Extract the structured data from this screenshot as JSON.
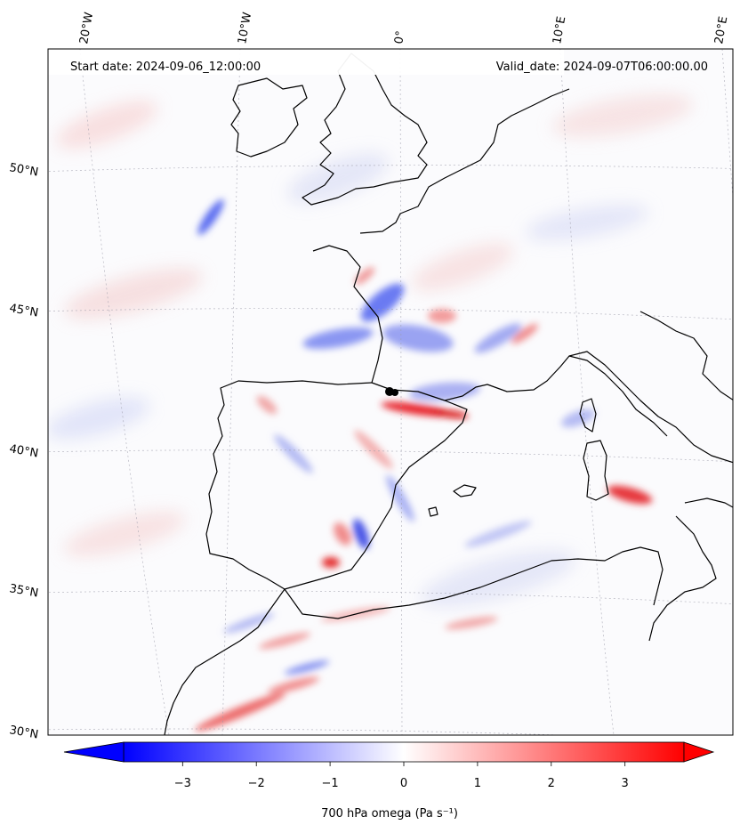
{
  "header": {
    "start_date": "Start date: 2024-09-06_12:00:00",
    "valid_date": "Valid_date: 2024-09-07T06:00:00.00"
  },
  "map": {
    "projection": "conic",
    "longitude_labels": [
      "20°W",
      "10°W",
      "0°",
      "10°E",
      "20°E"
    ],
    "latitude_labels": [
      "50°N",
      "45°N",
      "40°N",
      "35°N",
      "30°N"
    ],
    "gridlines": true,
    "field_features": [
      {
        "region": "Gulf of Lion / Pyrenees",
        "sign": "positive",
        "value": 3.2
      },
      {
        "region": "Bay of Biscay",
        "sign": "negative",
        "value": -2.5
      },
      {
        "region": "Sardinia",
        "sign": "positive",
        "value": 2.8
      },
      {
        "region": "Alboran Sea",
        "sign": "positive",
        "value": 3.0
      },
      {
        "region": "SE Spain",
        "sign": "negative",
        "value": -2.6
      },
      {
        "region": "Atlantic west of France",
        "sign": "negative",
        "value": -2.4
      },
      {
        "region": "NW Morocco coast",
        "sign": "positive",
        "value": 2.5
      }
    ]
  },
  "colorbar": {
    "label": "700 hPa omega (Pa s⁻¹)",
    "ticks": [
      "−3",
      "−2",
      "−1",
      "0",
      "1",
      "2",
      "3"
    ],
    "tick_values": [
      -3,
      -2,
      -1,
      0,
      1,
      2,
      3
    ],
    "range": [
      -3.8,
      3.8
    ],
    "colormap": "bwr",
    "low_color": "#0000ff",
    "mid_color": "#ffffff",
    "high_color": "#ff0000"
  }
}
